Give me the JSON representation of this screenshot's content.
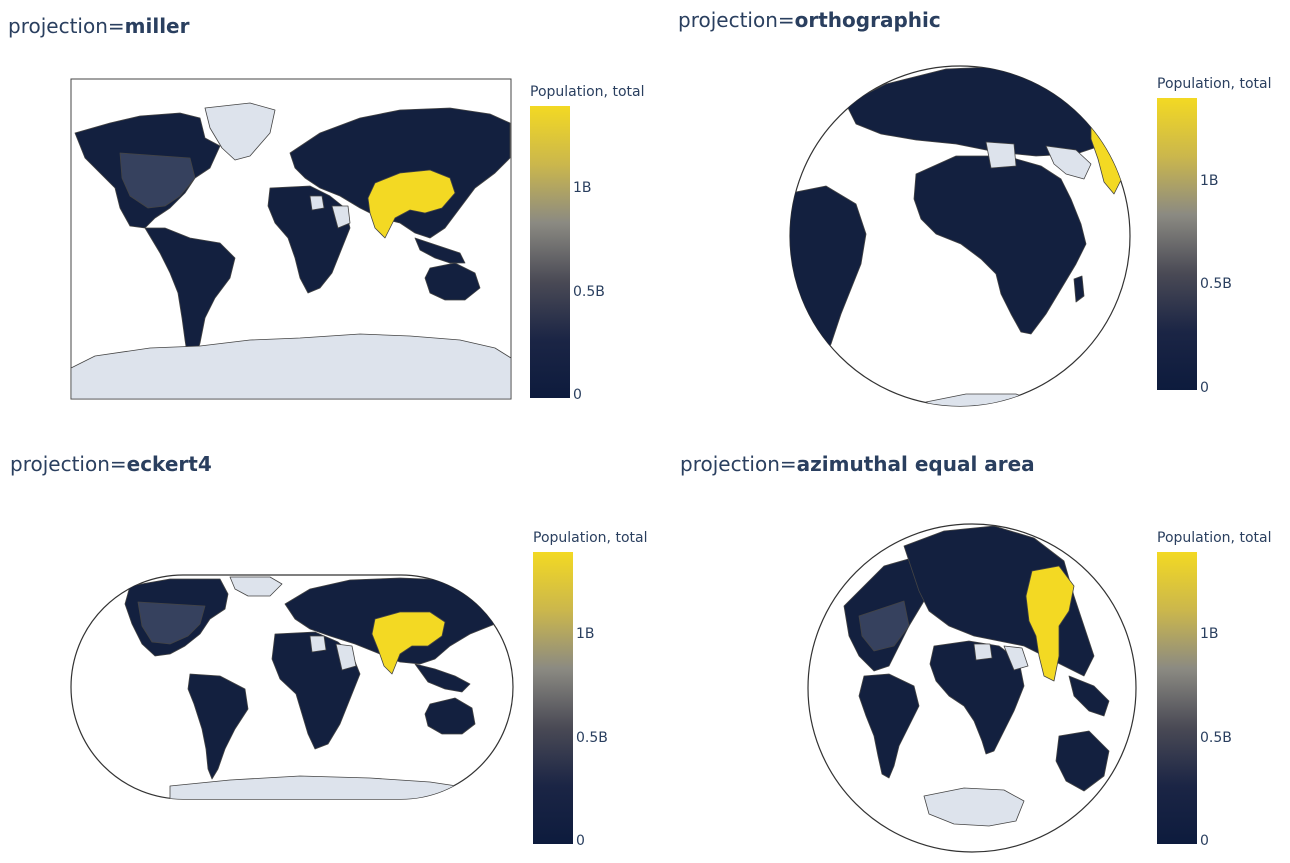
{
  "figure_title": "",
  "colorscale": {
    "title": "Population, total",
    "stops": [
      "#0d1b3d",
      "#1b2545",
      "#4a4a55",
      "#8b8a82",
      "#cbb74c",
      "#f3d923"
    ],
    "ticks": [
      {
        "label": "0",
        "value": 0
      },
      {
        "label": "0.5B",
        "value": 0.5
      },
      {
        "label": "1B",
        "value": 1.0
      }
    ],
    "max": 1.4
  },
  "colors": {
    "land_default": "#13203f",
    "land_missing": "#dde3ec",
    "land_china_india": "#f3d923",
    "land_usa": "#36415e",
    "outline": "#444444"
  },
  "panels": [
    {
      "key": "miller",
      "prefix": "projection=",
      "name": "miller",
      "type": "rect"
    },
    {
      "key": "orthographic",
      "prefix": "projection=",
      "name": "orthographic",
      "type": "globe"
    },
    {
      "key": "eckert4",
      "prefix": "projection=",
      "name": "eckert4",
      "type": "eckert"
    },
    {
      "key": "azimuthal",
      "prefix": "projection=",
      "name": "azimuthal equal area",
      "type": "azimuthal"
    }
  ]
}
